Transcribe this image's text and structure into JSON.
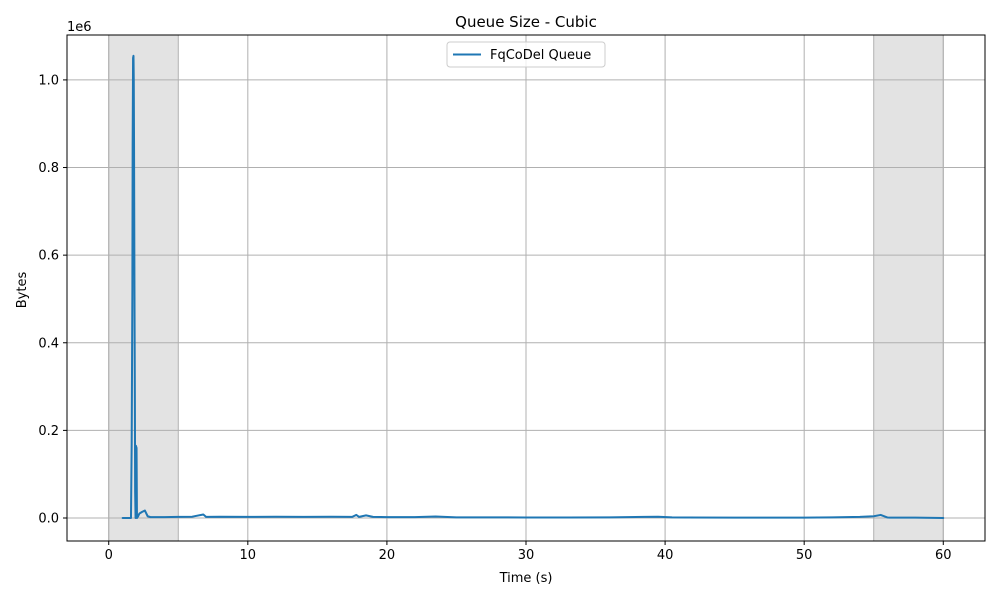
{
  "chart_data": {
    "type": "line",
    "title": "Queue Size - Cubic",
    "xlabel": "Time (s)",
    "ylabel": "Bytes",
    "y_offset_text": "1e6",
    "xlim": [
      -3,
      63
    ],
    "ylim": [
      -0.0525,
      1.1025
    ],
    "y_scale": 1000000,
    "xticks": [
      0,
      10,
      20,
      30,
      40,
      50,
      60
    ],
    "yticks": [
      0.0,
      0.2,
      0.4,
      0.6,
      0.8,
      1.0
    ],
    "xtick_labels": [
      "0",
      "10",
      "20",
      "30",
      "40",
      "50",
      "60"
    ],
    "ytick_labels": [
      "0.0",
      "0.2",
      "0.4",
      "0.6",
      "0.8",
      "1.0"
    ],
    "grid": true,
    "legend_position": "top-center",
    "shaded_regions": [
      {
        "x0": 0,
        "x1": 5,
        "color": "#e3e3e3"
      },
      {
        "x0": 55,
        "x1": 60,
        "color": "#e3e3e3"
      }
    ],
    "series": [
      {
        "name": "FqCoDel Queue",
        "color": "#1f77b4",
        "x": [
          1.0,
          1.6,
          1.65,
          1.7,
          1.72,
          1.75,
          1.78,
          1.8,
          1.82,
          1.85,
          1.88,
          1.9,
          1.93,
          1.95,
          2.0,
          2.03,
          2.05,
          2.1,
          2.2,
          2.4,
          2.6,
          2.8,
          3.0,
          4.0,
          5.0,
          6.0,
          6.8,
          7.0,
          8.0,
          10.0,
          12.0,
          14.0,
          16.0,
          17.5,
          17.8,
          18.0,
          18.5,
          19.0,
          20.0,
          22.0,
          23.5,
          25.0,
          28.0,
          30.0,
          33.0,
          36.0,
          38.5,
          39.5,
          40.5,
          41.5,
          45.0,
          50.0,
          52.0,
          54.0,
          55.0,
          55.5,
          56.0,
          58.0,
          60.0
        ],
        "y": [
          0,
          0,
          170000,
          520000,
          850000,
          1050000,
          1055000,
          1000000,
          850000,
          520000,
          260000,
          60000,
          0,
          165000,
          160000,
          0,
          8000,
          3000,
          10000,
          14000,
          17000,
          4000,
          2000,
          2000,
          2500,
          3000,
          8000,
          2500,
          3000,
          2500,
          3000,
          2500,
          3000,
          2500,
          7000,
          2500,
          6000,
          2500,
          2000,
          2000,
          3500,
          1500,
          1500,
          1000,
          1000,
          1500,
          2500,
          3000,
          1500,
          1000,
          800,
          800,
          1500,
          2500,
          4000,
          7000,
          1000,
          800,
          0
        ]
      }
    ]
  }
}
